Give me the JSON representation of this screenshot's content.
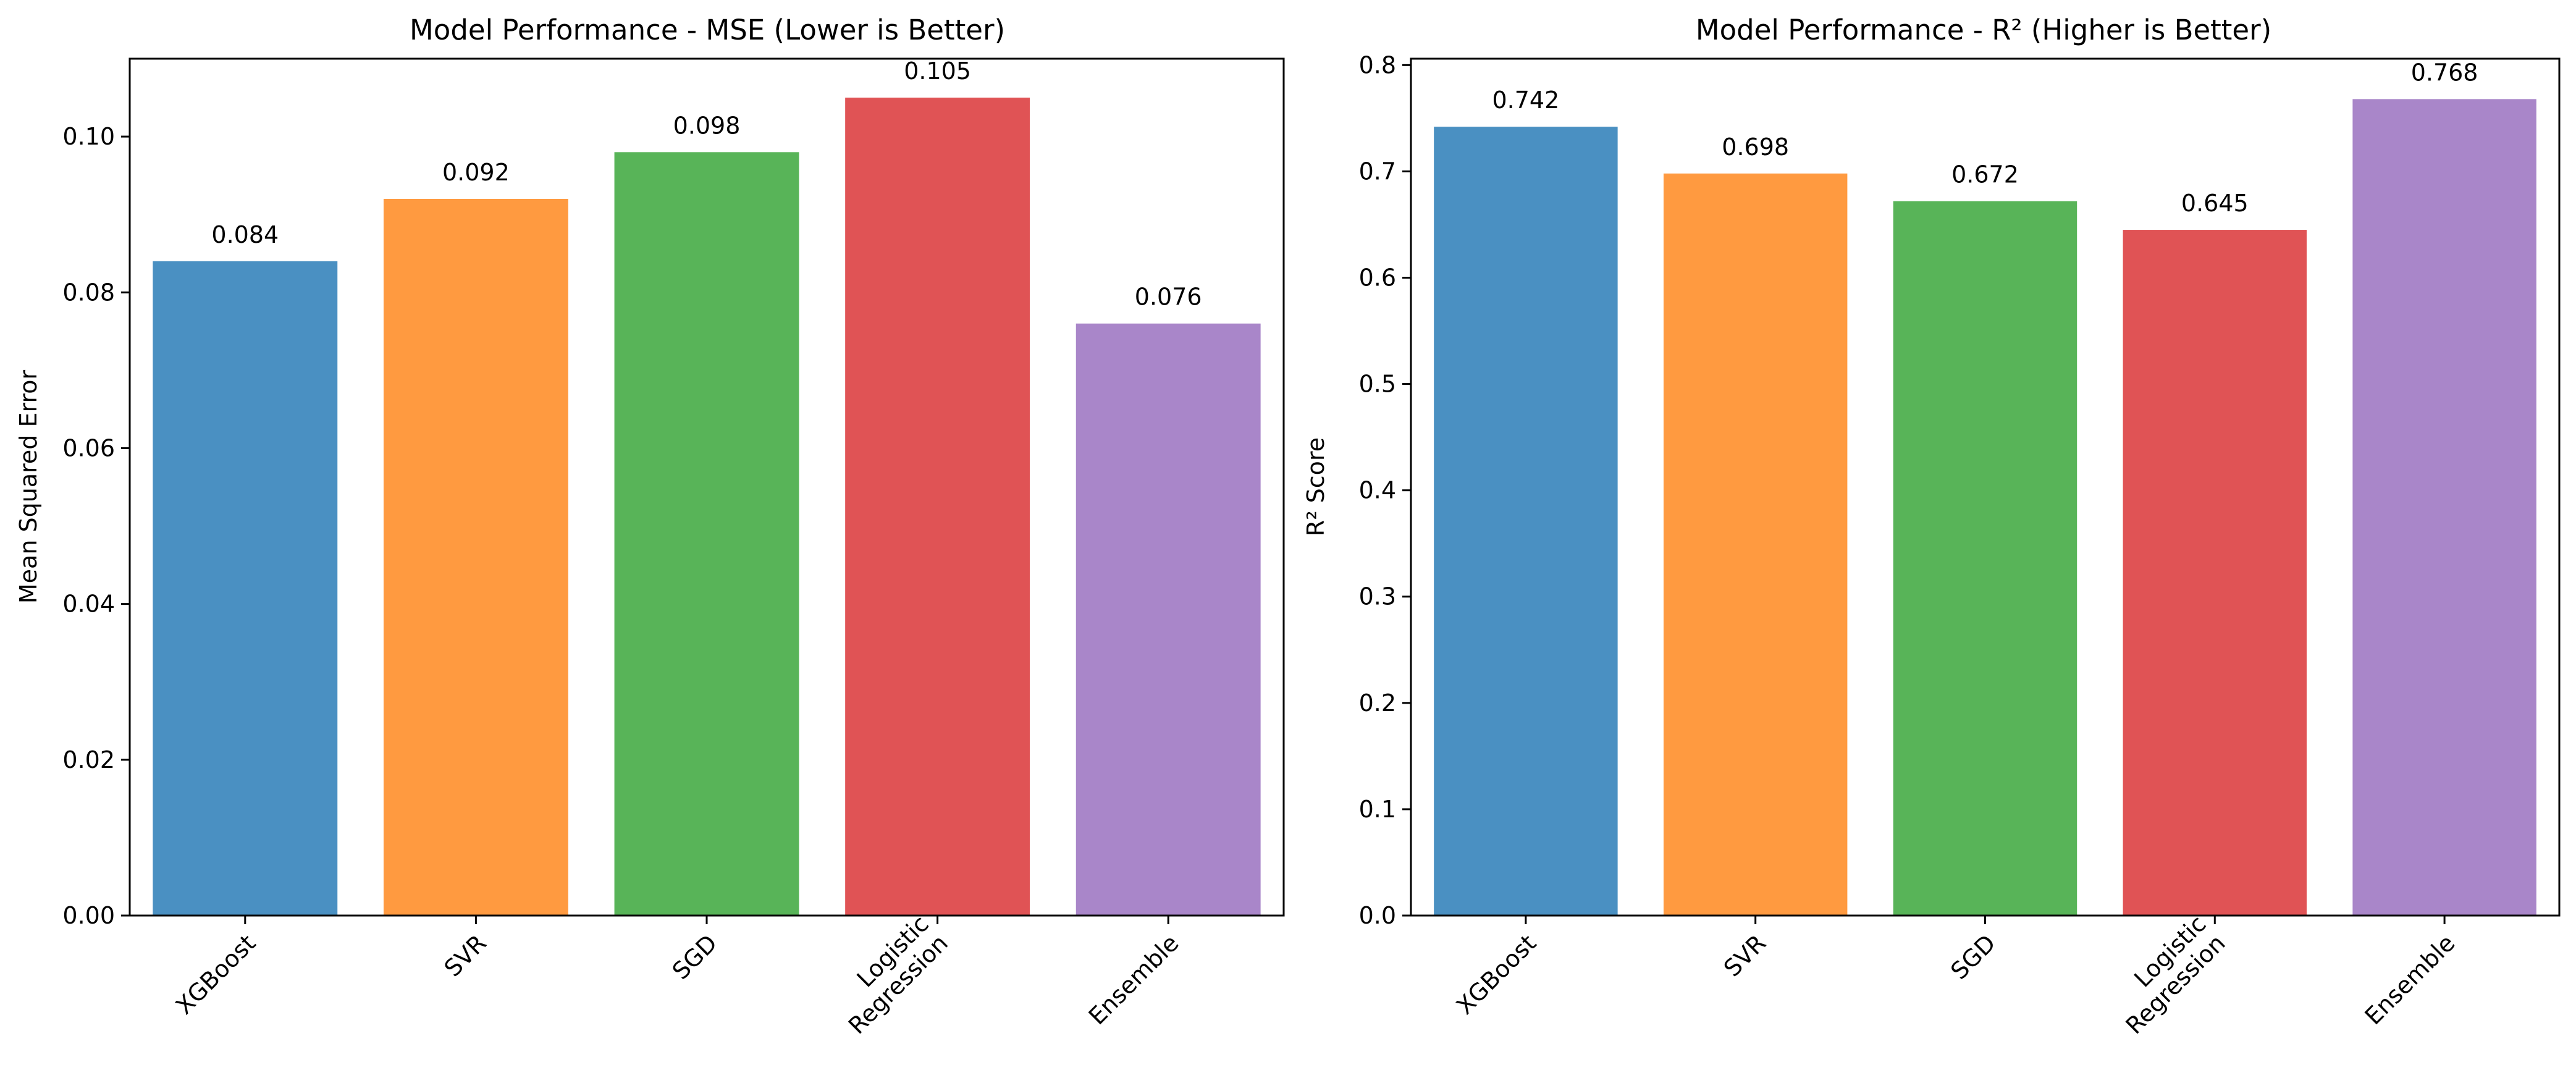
{
  "chart_data": [
    {
      "type": "bar",
      "title": "Model Performance - MSE (Lower is Better)",
      "xlabel": "",
      "ylabel": "Mean Squared Error",
      "categories": [
        "XGBoost",
        "SVR",
        "SGD",
        "Logistic\nRegression",
        "Ensemble"
      ],
      "values": [
        0.084,
        0.092,
        0.098,
        0.105,
        0.076
      ],
      "value_labels": [
        "0.084",
        "0.092",
        "0.098",
        "0.105",
        "0.076"
      ],
      "colors": [
        "#4a90c2",
        "#ff9a40",
        "#58b458",
        "#e05355",
        "#a986c9"
      ],
      "ylim": [
        0,
        0.11
      ],
      "yticks": [
        0,
        0.02,
        0.04,
        0.06,
        0.08,
        0.1
      ],
      "ytick_labels": [
        "0.00",
        "0.02",
        "0.04",
        "0.06",
        "0.08",
        "0.10"
      ],
      "grid": false,
      "legend": "none"
    },
    {
      "type": "bar",
      "title": "Model Performance - R² (Higher is Better)",
      "xlabel": "",
      "ylabel": "R² Score",
      "categories": [
        "XGBoost",
        "SVR",
        "SGD",
        "Logistic\nRegression",
        "Ensemble"
      ],
      "values": [
        0.742,
        0.698,
        0.672,
        0.645,
        0.768
      ],
      "value_labels": [
        "0.742",
        "0.698",
        "0.672",
        "0.645",
        "0.768"
      ],
      "colors": [
        "#4a90c2",
        "#ff9a40",
        "#58b458",
        "#e05355",
        "#a986c9"
      ],
      "ylim": [
        0,
        0.806
      ],
      "yticks": [
        0,
        0.1,
        0.2,
        0.3,
        0.4,
        0.5,
        0.6,
        0.7,
        0.8
      ],
      "ytick_labels": [
        "0.0",
        "0.1",
        "0.2",
        "0.3",
        "0.4",
        "0.5",
        "0.6",
        "0.7",
        "0.8"
      ],
      "grid": false,
      "legend": "none"
    }
  ]
}
